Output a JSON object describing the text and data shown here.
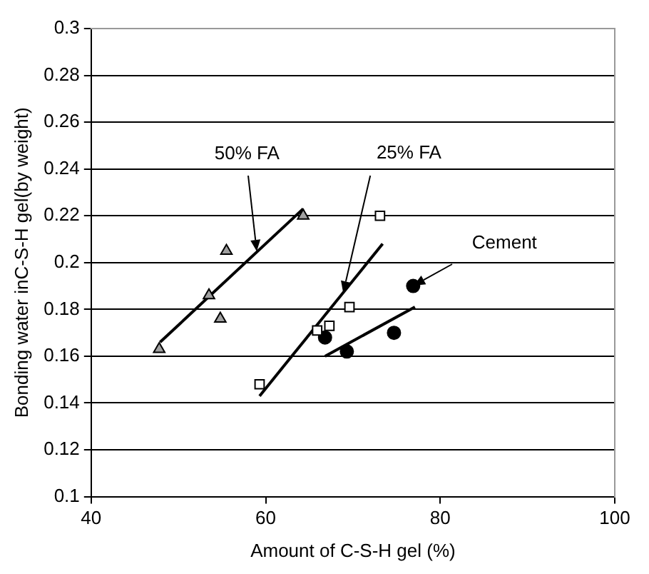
{
  "chart_data": {
    "type": "scatter",
    "xlabel": "Amount of C-S-H gel (%)",
    "ylabel": "Bonding water inC-S-H gel(by weight)",
    "xlim": [
      40,
      100
    ],
    "xticks": [
      40,
      60,
      80,
      100
    ],
    "ylim": [
      0.1,
      0.3
    ],
    "yticks": [
      0.1,
      0.12,
      0.14,
      0.16,
      0.18,
      0.2,
      0.22,
      0.24,
      0.26,
      0.28,
      0.3
    ],
    "grid": "y",
    "legend": false,
    "series": [
      {
        "type": "scatter",
        "marker": "triangle",
        "color": "#a0a0a0",
        "x": [
          47.8,
          53.5,
          55.5,
          54.8,
          64.3
        ],
        "values": [
          0.163,
          0.186,
          0.205,
          0.176,
          0.22
        ]
      },
      {
        "type": "scatter",
        "marker": "square",
        "color": "#ffffff",
        "x": [
          59.3,
          65.9,
          67.3,
          69.6,
          73.1
        ],
        "values": [
          0.148,
          0.171,
          0.173,
          0.181,
          0.22
        ]
      },
      {
        "type": "scatter",
        "marker": "circle",
        "color": "#000000",
        "x": [
          66.8,
          69.3,
          74.7,
          76.9
        ],
        "values": [
          0.168,
          0.162,
          0.17,
          0.19
        ]
      },
      {
        "type": "line",
        "marker": "none",
        "color": "#000000",
        "x": [
          47.9,
          64.3
        ],
        "values": [
          0.166,
          0.223
        ]
      },
      {
        "type": "line",
        "marker": "none",
        "color": "#000000",
        "x": [
          59.3,
          73.4
        ],
        "values": [
          0.143,
          0.208
        ]
      },
      {
        "type": "line",
        "marker": "none",
        "color": "#000000",
        "x": [
          66.8,
          77.1
        ],
        "values": [
          0.16,
          0.181
        ]
      }
    ],
    "annotations": [
      {
        "text": "50% FA",
        "x": 59.0,
        "y": 0.205
      },
      {
        "text": "25% FA",
        "x": 68.9,
        "y": 0.187
      },
      {
        "text": "Cement",
        "x": 76.9,
        "y": 0.19
      }
    ]
  }
}
